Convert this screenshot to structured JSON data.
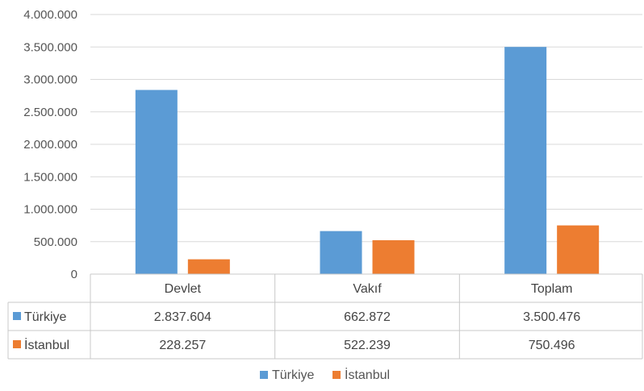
{
  "chart_data": {
    "type": "bar",
    "categories": [
      "Devlet",
      "Vakıf",
      "Toplam"
    ],
    "series": [
      {
        "name": "Türkiye",
        "values": [
          2837604,
          662872,
          3500476
        ],
        "labels": [
          "2.837.604",
          "662.872",
          "3.500.476"
        ],
        "color": "#5B9BD5"
      },
      {
        "name": "İstanbul",
        "values": [
          228257,
          522239,
          750496
        ],
        "labels": [
          "228.257",
          "522.239",
          "750.496"
        ],
        "color": "#ED7D31"
      }
    ],
    "ylim": [
      0,
      4000000
    ],
    "yticks": [
      {
        "value": 0,
        "label": "0"
      },
      {
        "value": 500000,
        "label": "500.000"
      },
      {
        "value": 1000000,
        "label": "1.000.000"
      },
      {
        "value": 1500000,
        "label": "1.500.000"
      },
      {
        "value": 2000000,
        "label": "2.000.000"
      },
      {
        "value": 2500000,
        "label": "2.500.000"
      },
      {
        "value": 3000000,
        "label": "3.000.000"
      },
      {
        "value": 3500000,
        "label": "3.500.000"
      },
      {
        "value": 4000000,
        "label": "4.000.000"
      }
    ],
    "grid": true,
    "data_table": true,
    "legend_position": "bottom"
  }
}
